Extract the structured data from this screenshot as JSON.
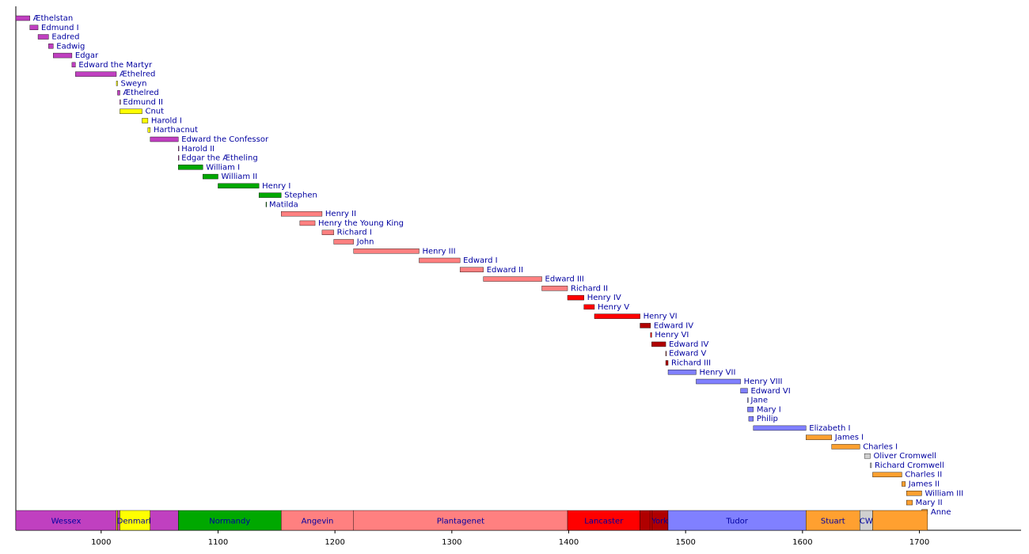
{
  "chart_data": {
    "type": "timeline",
    "categories": [
      "Æthelstan",
      "Edmund I",
      "Eadred",
      "Eadwig",
      "Edgar",
      "Edward the Martyr",
      "Æthelred",
      "Sweyn",
      "Æthelred",
      "Edmund II",
      "Cnut",
      "Harold I",
      "Harthacnut",
      "Edward the Confessor",
      "Harold II",
      "Edgar the Ætheling",
      "William I",
      "William II",
      "Henry I",
      "Stephen",
      "Matilda",
      "Henry II",
      "Henry the Young King",
      "Richard I",
      "John",
      "Henry III",
      "Edward I",
      "Edward II",
      "Edward III",
      "Richard II",
      "Henry IV",
      "Henry V",
      "Henry VI",
      "Edward IV",
      "Henry VI",
      "Edward IV",
      "Edward V",
      "Richard III",
      "Henry VII",
      "Henry VIII",
      "Edward VI",
      "Jane",
      "Mary I",
      "Philip",
      "Elizabeth I",
      "James I",
      "Charles I",
      "Oliver Cromwell",
      "Richard Cromwell",
      "Charles II",
      "James II",
      "William III",
      "Mary II",
      "Anne"
    ],
    "starts": [
      927,
      939,
      946,
      955,
      959,
      975,
      978,
      1013,
      1014,
      1016,
      1016,
      1035,
      1040,
      1042,
      1066,
      1066,
      1066,
      1087,
      1100,
      1135,
      1141,
      1154,
      1170,
      1189,
      1199,
      1216,
      1272,
      1307,
      1327,
      1377,
      1399,
      1413,
      1422,
      1461,
      1470,
      1471,
      1483,
      1483,
      1485,
      1509,
      1547,
      1553,
      1553,
      1554,
      1558,
      1603,
      1625,
      1653,
      1658,
      1660,
      1685,
      1689,
      1689,
      1702
    ],
    "ends": [
      939,
      946,
      955,
      959,
      975,
      978,
      1013,
      1014,
      1016,
      1016,
      1035,
      1040,
      1042,
      1066,
      1066,
      1066,
      1087,
      1100,
      1135,
      1154,
      1141,
      1189,
      1183,
      1199,
      1216,
      1272,
      1307,
      1327,
      1377,
      1399,
      1413,
      1422,
      1461,
      1470,
      1471,
      1483,
      1483,
      1485,
      1509,
      1547,
      1553,
      1553,
      1558,
      1558,
      1603,
      1625,
      1649,
      1658,
      1659,
      1685,
      1688,
      1702,
      1694,
      1707
    ],
    "colors": [
      "#c040c0",
      "#c040c0",
      "#c040c0",
      "#c040c0",
      "#c040c0",
      "#c040c0",
      "#c040c0",
      "#ffff00",
      "#c040c0",
      "#c040c0",
      "#ffff00",
      "#ffff00",
      "#ffff00",
      "#c040c0",
      "#c040c0",
      "#c040c0",
      "#00a800",
      "#00a800",
      "#00a800",
      "#00a800",
      "#00a800",
      "#ff8080",
      "#ff8080",
      "#ff8080",
      "#ff8080",
      "#ff8080",
      "#ff8080",
      "#ff8080",
      "#ff8080",
      "#ff8080",
      "#ff0000",
      "#ff0000",
      "#ff0000",
      "#b00000",
      "#ff0000",
      "#b00000",
      "#b00000",
      "#b00000",
      "#8080ff",
      "#8080ff",
      "#8080ff",
      "#8080ff",
      "#8080ff",
      "#8080ff",
      "#8080ff",
      "#ffa030",
      "#ffa030",
      "#d0d0d0",
      "#d0d0d0",
      "#ffa030",
      "#ffa030",
      "#ffa030",
      "#ffa030",
      "#ffa030"
    ],
    "houses": [
      {
        "name": "Wessex",
        "start": 927,
        "end": 1013,
        "color": "#c040c0"
      },
      {
        "name": null,
        "start": 1013,
        "end": 1014,
        "color": "#ffff00"
      },
      {
        "name": null,
        "start": 1014,
        "end": 1016,
        "color": "#c040c0"
      },
      {
        "name": "Denmark",
        "start": 1016,
        "end": 1042,
        "color": "#ffff00"
      },
      {
        "name": null,
        "start": 1042,
        "end": 1066,
        "color": "#c040c0"
      },
      {
        "name": "Normandy",
        "start": 1066,
        "end": 1154,
        "color": "#00a800"
      },
      {
        "name": "Angevin",
        "start": 1154,
        "end": 1216,
        "color": "#ff8080"
      },
      {
        "name": "Plantagenet",
        "start": 1216,
        "end": 1399,
        "color": "#ff8080"
      },
      {
        "name": "Lancaster",
        "start": 1399,
        "end": 1461,
        "color": "#ff0000"
      },
      {
        "name": null,
        "start": 1461,
        "end": 1470,
        "color": "#b00000"
      },
      {
        "name": null,
        "start": 1470,
        "end": 1471,
        "color": "#ff0000"
      },
      {
        "name": "York",
        "start": 1471,
        "end": 1485,
        "color": "#b00000"
      },
      {
        "name": "Tudor",
        "start": 1485,
        "end": 1603,
        "color": "#8080ff"
      },
      {
        "name": "Stuart",
        "start": 1603,
        "end": 1649,
        "color": "#ffa030"
      },
      {
        "name": "CW",
        "start": 1649,
        "end": 1660,
        "color": "#d0d0d0"
      },
      {
        "name": null,
        "start": 1660,
        "end": 1707,
        "color": "#ffa030"
      }
    ],
    "xlim": [
      927,
      1787
    ],
    "xticks": [
      1000,
      1100,
      1200,
      1300,
      1400,
      1500,
      1600,
      1700
    ]
  }
}
